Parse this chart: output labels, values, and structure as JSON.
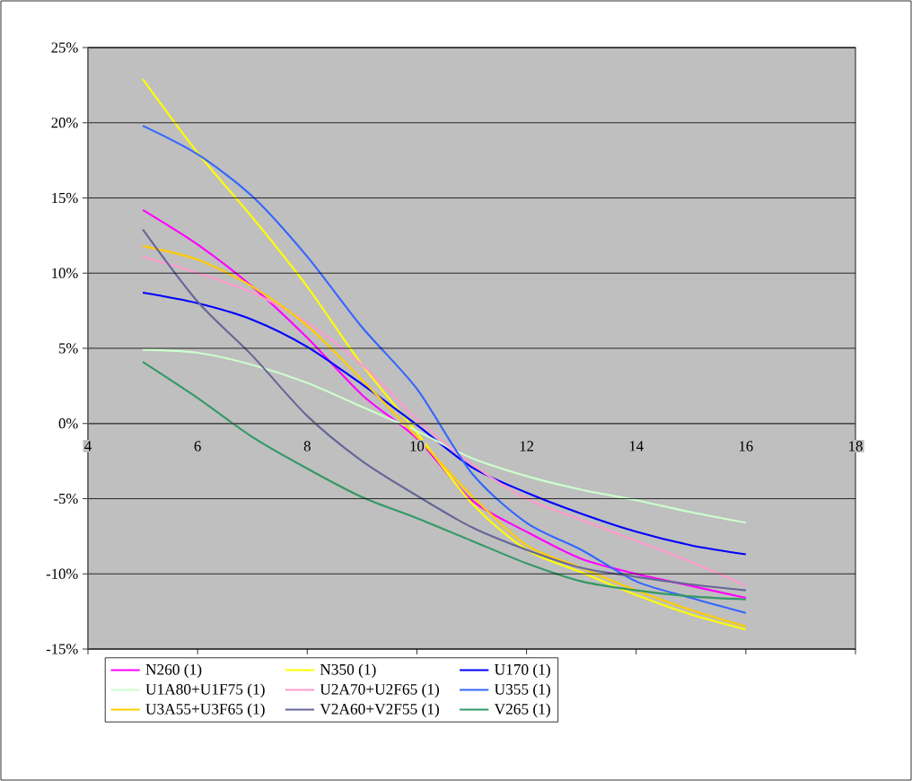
{
  "chart_data": {
    "type": "line",
    "x": [
      5,
      6,
      7,
      8,
      9,
      10,
      11,
      12,
      13,
      14,
      15,
      16
    ],
    "xlim": [
      4,
      18
    ],
    "xticks": [
      4,
      6,
      8,
      10,
      12,
      14,
      16,
      18
    ],
    "ylim": [
      -15,
      25
    ],
    "yticks": [
      {
        "value": -15,
        "label": "-15%"
      },
      {
        "value": -10,
        "label": "-10%"
      },
      {
        "value": -5,
        "label": "-5%"
      },
      {
        "value": 0,
        "label": "0%"
      },
      {
        "value": 5,
        "label": "5%"
      },
      {
        "value": 10,
        "label": "10%"
      },
      {
        "value": 15,
        "label": "15%"
      },
      {
        "value": 20,
        "label": "20%"
      },
      {
        "value": 25,
        "label": "25%"
      }
    ],
    "grid": "y",
    "legend": "bottom",
    "marker": "none",
    "line_style": "solid",
    "series": [
      {
        "name": "N260 (1)",
        "color": "#ff00ff",
        "values": [
          14.2,
          11.9,
          9.1,
          5.7,
          1.9,
          -1.0,
          -5.1,
          -7.2,
          -9.0,
          -10.0,
          -10.8,
          -11.6
        ]
      },
      {
        "name": "N350 (1)",
        "color": "#ffff00",
        "values": [
          22.9,
          18.0,
          13.7,
          9.1,
          3.9,
          -0.6,
          -5.3,
          -8.4,
          -9.9,
          -11.4,
          -12.7,
          -13.7
        ]
      },
      {
        "name": "U170 (1)",
        "color": "#0000ff",
        "values": [
          8.7,
          8.0,
          6.9,
          5.1,
          2.6,
          -0.1,
          -2.9,
          -4.6,
          -6.0,
          -7.2,
          -8.1,
          -8.7
        ]
      },
      {
        "name": "U1A80+U1F75 (1)",
        "color": "#ccffcc",
        "values": [
          4.9,
          4.7,
          3.9,
          2.7,
          1.1,
          -0.5,
          -2.3,
          -3.5,
          -4.4,
          -5.1,
          -5.9,
          -6.6
        ]
      },
      {
        "name": "U2A70+U2F65 (1)",
        "color": "#ff99cc",
        "values": [
          11.1,
          10.0,
          8.7,
          6.7,
          3.9,
          0.3,
          -2.7,
          -5.0,
          -6.4,
          -7.8,
          -9.2,
          -10.8
        ]
      },
      {
        "name": "U355 (1)",
        "color": "#3366ff",
        "values": [
          19.8,
          17.9,
          15.1,
          11.1,
          6.4,
          2.3,
          -3.3,
          -6.6,
          -8.4,
          -10.5,
          -11.6,
          -12.6
        ]
      },
      {
        "name": "U3A55+U3F65 (1)",
        "color": "#ffcc00",
        "values": [
          11.8,
          10.9,
          9.1,
          6.5,
          2.9,
          -0.9,
          -4.8,
          -8.1,
          -9.6,
          -11.1,
          -12.4,
          -13.5
        ]
      },
      {
        "name": "V2A60+V2F55 (1)",
        "color": "#666699",
        "values": [
          12.9,
          8.1,
          4.5,
          0.5,
          -2.5,
          -4.8,
          -6.9,
          -8.4,
          -9.6,
          -10.2,
          -10.7,
          -11.1
        ]
      },
      {
        "name": "V265 (1)",
        "color": "#339966",
        "values": [
          4.1,
          1.7,
          -0.9,
          -3.0,
          -4.9,
          -6.3,
          -7.8,
          -9.3,
          -10.5,
          -11.1,
          -11.5,
          -11.7
        ]
      }
    ]
  }
}
